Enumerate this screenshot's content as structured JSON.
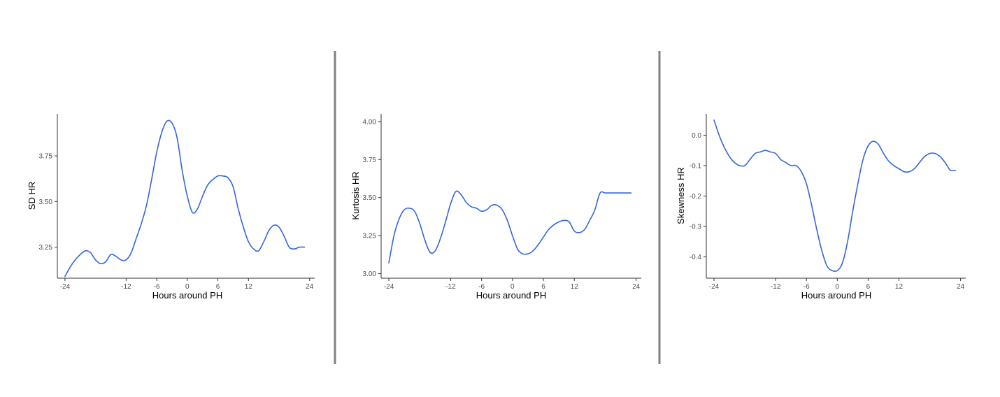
{
  "colors": {
    "line": "#3366dd",
    "separator": "#808080",
    "axis": "#333333",
    "tick_text": "#4d4d4d"
  },
  "chart_data": [
    {
      "type": "line",
      "title": "",
      "xlabel": "Hours around PH",
      "ylabel": "SD HR",
      "xlim": [
        -25.5,
        25
      ],
      "ylim": [
        3.08,
        3.98
      ],
      "xticks": [
        -24,
        -12,
        -6,
        0,
        6,
        12,
        24
      ],
      "yticks": [
        3.25,
        3.5,
        3.75
      ],
      "ytick_labels": [
        "3.25",
        "3.50",
        "3.75"
      ],
      "grid": false,
      "series": [
        {
          "x": [
            -24,
            -23,
            -22,
            -21,
            -20,
            -19,
            -18,
            -17,
            -16,
            -15,
            -14,
            -13,
            -12,
            -11,
            -10,
            -9,
            -8,
            -7,
            -6,
            -5,
            -4,
            -3,
            -2,
            -1,
            0,
            1,
            2,
            3,
            4,
            5,
            6,
            7,
            8,
            9,
            10,
            11,
            12,
            13,
            14,
            15,
            16,
            17,
            18,
            19,
            20,
            21,
            22,
            23
          ],
          "y": [
            3.09,
            3.14,
            3.18,
            3.21,
            3.23,
            3.22,
            3.18,
            3.16,
            3.17,
            3.21,
            3.2,
            3.18,
            3.18,
            3.22,
            3.3,
            3.38,
            3.48,
            3.62,
            3.77,
            3.88,
            3.94,
            3.93,
            3.85,
            3.67,
            3.53,
            3.44,
            3.46,
            3.53,
            3.59,
            3.62,
            3.64,
            3.64,
            3.63,
            3.58,
            3.46,
            3.36,
            3.28,
            3.24,
            3.23,
            3.28,
            3.34,
            3.37,
            3.36,
            3.31,
            3.25,
            3.24,
            3.25,
            3.25
          ]
        }
      ]
    },
    {
      "type": "line",
      "title": "",
      "xlabel": "Hours around PH",
      "ylabel": "Kurtosis HR",
      "xlim": [
        -25.5,
        25
      ],
      "ylim": [
        2.97,
        4.05
      ],
      "xticks": [
        -24,
        -12,
        -6,
        0,
        6,
        12,
        24
      ],
      "yticks": [
        3.0,
        3.25,
        3.5,
        3.75,
        4.0
      ],
      "ytick_labels": [
        "3.00",
        "3.25",
        "3.50",
        "3.75",
        "4.00"
      ],
      "grid": false,
      "series": [
        {
          "x": [
            -24,
            -23,
            -22,
            -21,
            -20,
            -19,
            -18,
            -17,
            -16,
            -15,
            -14,
            -13,
            -12,
            -11,
            -10,
            -9,
            -8,
            -7,
            -6,
            -5,
            -4,
            -3,
            -2,
            -1,
            0,
            1,
            2,
            3,
            4,
            5,
            6,
            7,
            8,
            9,
            10,
            11,
            12,
            13,
            14,
            15,
            16,
            17,
            18,
            19,
            20,
            21,
            22,
            23
          ],
          "y": [
            3.07,
            3.25,
            3.36,
            3.42,
            3.43,
            3.41,
            3.33,
            3.22,
            3.14,
            3.15,
            3.23,
            3.34,
            3.46,
            3.54,
            3.52,
            3.47,
            3.44,
            3.43,
            3.41,
            3.42,
            3.45,
            3.45,
            3.42,
            3.35,
            3.25,
            3.16,
            3.13,
            3.13,
            3.15,
            3.19,
            3.24,
            3.29,
            3.32,
            3.34,
            3.35,
            3.34,
            3.28,
            3.27,
            3.29,
            3.35,
            3.42,
            3.53,
            3.53,
            3.53,
            3.53,
            3.53,
            3.53,
            3.53
          ]
        }
      ]
    },
    {
      "type": "line",
      "title": "",
      "xlabel": "Hours around PH",
      "ylabel": "Skewness HR",
      "xlim": [
        -25.5,
        25
      ],
      "ylim": [
        -0.47,
        0.07
      ],
      "xticks": [
        -24,
        -12,
        -6,
        0,
        6,
        12,
        24
      ],
      "yticks": [
        -0.4,
        -0.3,
        -0.2,
        -0.1,
        0.0
      ],
      "ytick_labels": [
        "-0.4",
        "-0.3",
        "-0.2",
        "-0.1",
        "0.0"
      ],
      "grid": false,
      "series": [
        {
          "x": [
            -24,
            -23,
            -22,
            -21,
            -20,
            -19,
            -18,
            -17,
            -16,
            -15,
            -14,
            -13,
            -12,
            -11,
            -10,
            -9,
            -8,
            -7,
            -6,
            -5,
            -4,
            -3,
            -2,
            -1,
            0,
            1,
            2,
            3,
            4,
            5,
            6,
            7,
            8,
            9,
            10,
            11,
            12,
            13,
            14,
            15,
            16,
            17,
            18,
            19,
            20,
            21,
            22,
            23
          ],
          "y": [
            0.05,
            0.0,
            -0.04,
            -0.07,
            -0.09,
            -0.1,
            -0.1,
            -0.08,
            -0.06,
            -0.055,
            -0.05,
            -0.055,
            -0.06,
            -0.08,
            -0.09,
            -0.1,
            -0.1,
            -0.12,
            -0.16,
            -0.23,
            -0.31,
            -0.38,
            -0.43,
            -0.445,
            -0.445,
            -0.42,
            -0.35,
            -0.25,
            -0.16,
            -0.08,
            -0.035,
            -0.02,
            -0.03,
            -0.06,
            -0.085,
            -0.1,
            -0.11,
            -0.12,
            -0.12,
            -0.11,
            -0.09,
            -0.07,
            -0.06,
            -0.06,
            -0.07,
            -0.09,
            -0.115,
            -0.115
          ]
        }
      ]
    }
  ]
}
